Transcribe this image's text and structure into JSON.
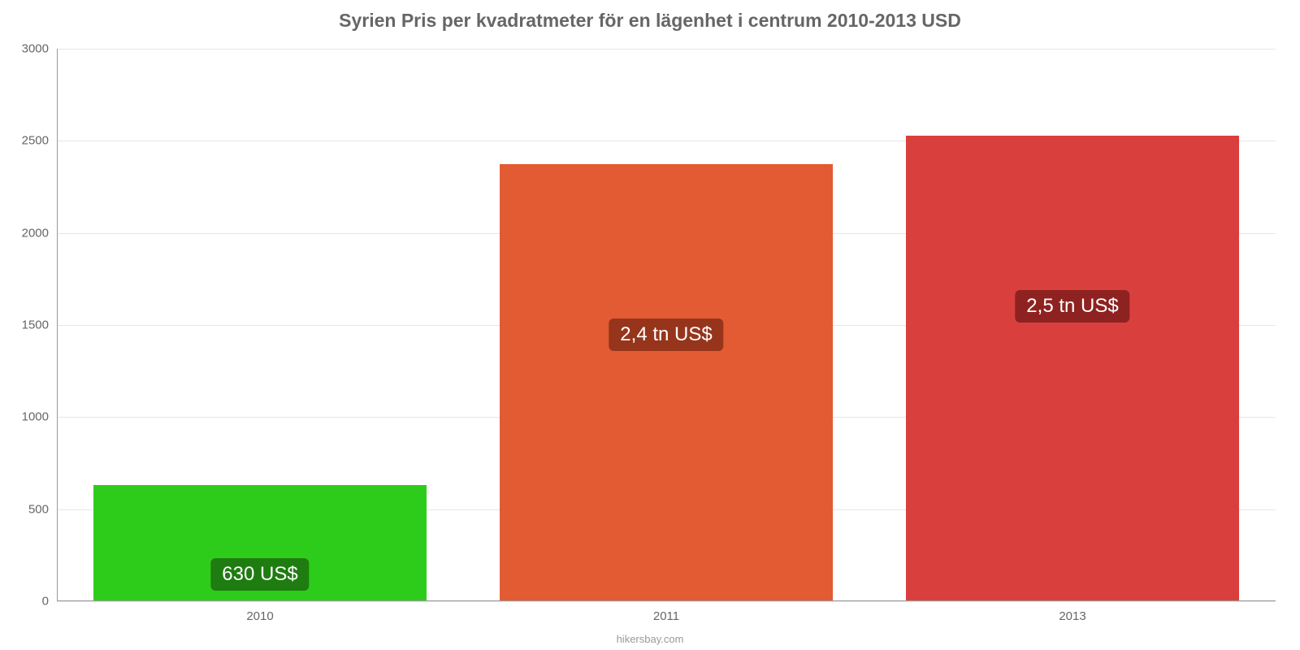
{
  "chart": {
    "type": "bar",
    "title": "Syrien Pris per kvadratmeter för en lägenhet i centrum 2010-2013 USD",
    "title_fontsize": 23,
    "title_color": "#666666",
    "background_color": "#ffffff",
    "grid_color": "#e6e6e6",
    "axis_color": "#999999",
    "tick_label_color": "#666666",
    "tick_fontsize": 15,
    "y": {
      "min": 0,
      "max": 3000,
      "ticks": [
        0,
        500,
        1000,
        1500,
        2000,
        2500,
        3000
      ]
    },
    "categories": [
      "2010",
      "2011",
      "2013"
    ],
    "values": [
      630,
      2375,
      2530
    ],
    "bar_colors": [
      "#2ecc1a",
      "#e25b33",
      "#d9403d"
    ],
    "value_labels": [
      "630 US$",
      "2,4 tn US$",
      "2,5 tn US$"
    ],
    "value_label_bg": [
      "#1f7c11",
      "#96351b",
      "#8e2220"
    ],
    "value_label_fontsize": 24,
    "value_label_offsets": [
      130,
      230,
      230
    ],
    "credit": "hikersbay.com",
    "credit_color": "#999999"
  }
}
